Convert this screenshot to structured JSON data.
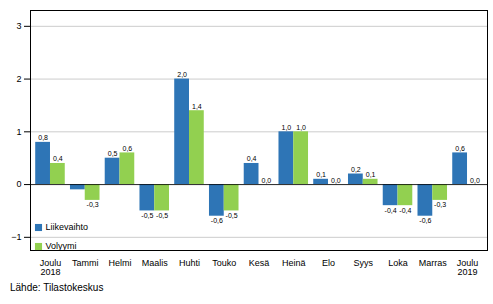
{
  "chart_data": {
    "type": "bar",
    "categories": [
      "Joulu\n2018",
      "Tammi",
      "Helmi",
      "Maalis",
      "Huhti",
      "Touko",
      "Kesä",
      "Heinä",
      "Elo",
      "Syys",
      "Loka",
      "Marras",
      "Joulu\n2019"
    ],
    "series": [
      {
        "name": "Liikevaihto",
        "color": "#2e75b6",
        "values": [
          0.8,
          -0.1,
          0.5,
          -0.5,
          2.0,
          -0.6,
          0.4,
          1.0,
          0.1,
          0.2,
          -0.4,
          -0.6,
          0.6
        ],
        "value_labels": [
          "0,8",
          null,
          "0,5",
          "-0,5",
          "2,0",
          "-0,6",
          "0,4",
          "1,0",
          "0,1",
          "0,2",
          "-0,4",
          "-0,6",
          "0,6"
        ]
      },
      {
        "name": "Volyymi",
        "color": "#92d050",
        "values": [
          0.4,
          -0.3,
          0.6,
          -0.5,
          1.4,
          -0.5,
          0.0,
          1.0,
          0.0,
          0.1,
          -0.4,
          -0.3,
          0.0
        ],
        "value_labels": [
          "0,4",
          "-0,3",
          "0,6",
          "-0,5",
          "1,4",
          "-0,5",
          "0,0",
          "1,0",
          "0,0",
          "0,1",
          "-0,4",
          "-0,3",
          "0,0"
        ]
      }
    ],
    "ylim": [
      -1.25,
      3.3
    ],
    "yticks": [
      -1,
      0,
      1,
      2,
      3
    ],
    "grid": true,
    "legend": "lower left",
    "data_labels": true,
    "source": "Lähde: Tilastokeskus"
  }
}
